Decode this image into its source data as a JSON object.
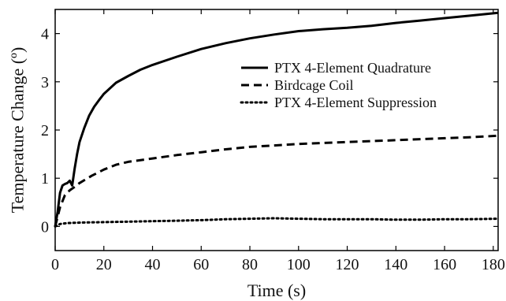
{
  "chart_data": {
    "type": "line",
    "title": "",
    "xlabel": "Time (s)",
    "ylabel": "Temperature Change (º)",
    "xlim": [
      0,
      182
    ],
    "ylim": [
      -0.5,
      4.5
    ],
    "xticks": [
      0,
      20,
      40,
      60,
      80,
      100,
      120,
      140,
      160,
      180
    ],
    "yticks": [
      0,
      1,
      2,
      3,
      4
    ],
    "grid": false,
    "legend_position": "right, inside plot",
    "series": [
      {
        "name": "PTX 4-Element Quadrature",
        "style": "solid",
        "x": [
          0,
          1,
          2,
          3,
          4,
          5,
          6,
          7,
          8,
          9,
          10,
          12,
          14,
          16,
          18,
          20,
          25,
          30,
          35,
          40,
          50,
          60,
          70,
          80,
          90,
          100,
          110,
          120,
          130,
          140,
          150,
          160,
          170,
          182
        ],
        "y": [
          0.0,
          0.3,
          0.7,
          0.85,
          0.88,
          0.9,
          0.95,
          0.85,
          1.2,
          1.5,
          1.75,
          2.05,
          2.3,
          2.48,
          2.62,
          2.75,
          2.98,
          3.12,
          3.25,
          3.35,
          3.52,
          3.68,
          3.8,
          3.9,
          3.98,
          4.05,
          4.09,
          4.12,
          4.16,
          4.22,
          4.27,
          4.32,
          4.37,
          4.43
        ]
      },
      {
        "name": "Birdcage Coil",
        "style": "dashed",
        "x": [
          0,
          2,
          4,
          6,
          8,
          10,
          15,
          20,
          25,
          30,
          40,
          50,
          60,
          70,
          80,
          90,
          100,
          110,
          120,
          130,
          140,
          150,
          160,
          170,
          182
        ],
        "y": [
          0.0,
          0.4,
          0.65,
          0.75,
          0.82,
          0.9,
          1.05,
          1.18,
          1.28,
          1.34,
          1.41,
          1.48,
          1.54,
          1.6,
          1.65,
          1.68,
          1.71,
          1.73,
          1.75,
          1.77,
          1.79,
          1.81,
          1.83,
          1.85,
          1.88
        ]
      },
      {
        "name": "PTX 4-Element Suppression",
        "style": "dotted",
        "x": [
          0,
          2,
          5,
          10,
          20,
          30,
          40,
          50,
          60,
          70,
          80,
          90,
          100,
          110,
          120,
          130,
          140,
          150,
          160,
          170,
          182
        ],
        "y": [
          0.0,
          0.05,
          0.07,
          0.08,
          0.09,
          0.1,
          0.11,
          0.12,
          0.13,
          0.15,
          0.16,
          0.17,
          0.16,
          0.15,
          0.15,
          0.15,
          0.14,
          0.14,
          0.15,
          0.15,
          0.16
        ]
      }
    ]
  }
}
